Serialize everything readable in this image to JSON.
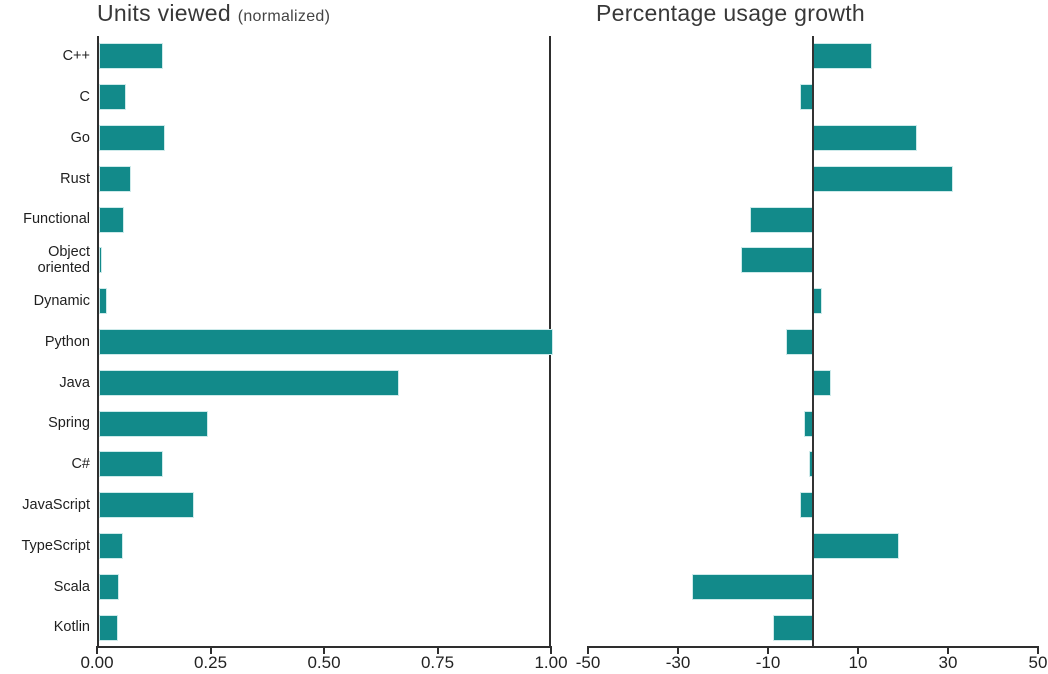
{
  "figure": {
    "background": "#ffffff"
  },
  "colors": {
    "bar_fill": "#128a8a",
    "bar_edge": "#cdeaea",
    "axis": "#2e2e2e",
    "zero_line": "#333333",
    "text": "#222222",
    "title_text": "#383838"
  },
  "chart_data": [
    {
      "type": "bar",
      "orientation": "horizontal",
      "title": "Units viewed",
      "title_note": "(normalized)",
      "categories": [
        "C++",
        "C",
        "Go",
        "Rust",
        "Functional",
        "Object oriented",
        "Dynamic",
        "Python",
        "Java",
        "Spring",
        "C#",
        "JavaScript",
        "TypeScript",
        "Scala",
        "Kotlin"
      ],
      "values": [
        0.14,
        0.06,
        0.145,
        0.07,
        0.055,
        0.006,
        0.018,
        1.0,
        0.66,
        0.24,
        0.14,
        0.21,
        0.053,
        0.044,
        0.042
      ],
      "xlim": [
        0,
        1
      ],
      "xtick_values": [
        0,
        0.25,
        0.5,
        0.75,
        1
      ],
      "xtick_labels": [
        "0.00",
        "0.25",
        "0.50",
        "0.75",
        "1.00"
      ],
      "grid": false,
      "legend": false,
      "category_labels_shown": true,
      "spines": [
        "left",
        "right",
        "bottom"
      ]
    },
    {
      "type": "bar",
      "orientation": "horizontal",
      "title": "Percentage usage growth",
      "title_note": "",
      "categories": [
        "C++",
        "C",
        "Go",
        "Rust",
        "Functional",
        "Object oriented",
        "Dynamic",
        "Python",
        "Java",
        "Spring",
        "C#",
        "JavaScript",
        "TypeScript",
        "Scala",
        "Kotlin"
      ],
      "values": [
        13,
        -3,
        23,
        31,
        -14,
        -16,
        2,
        -6,
        4,
        -2,
        -1,
        -3,
        19,
        -27,
        -9
      ],
      "xlim": [
        -50,
        50
      ],
      "xtick_values": [
        -50,
        -30,
        -10,
        10,
        30,
        50
      ],
      "xtick_labels": [
        "-50",
        "-30",
        "-10",
        "10",
        "30",
        "50"
      ],
      "grid": false,
      "legend": false,
      "category_labels_shown": false,
      "zero_line": true,
      "spines": [
        "bottom"
      ]
    }
  ]
}
